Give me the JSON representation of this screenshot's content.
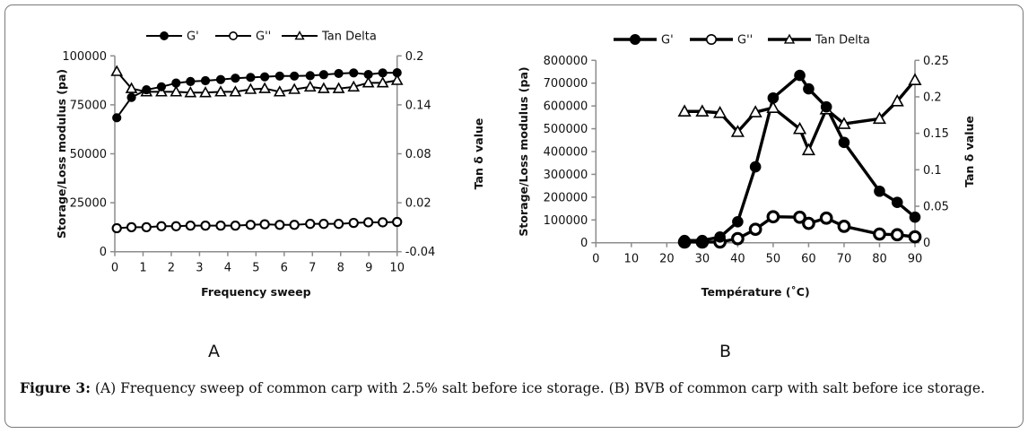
{
  "figure": {
    "caption_label": "Figure 3:",
    "caption_text": " (A) Frequency sweep of common carp with 2.5% salt before ice storage. (B) BVB of common carp with salt before ice storage.",
    "panel_a_label": "A",
    "panel_b_label": "B"
  },
  "chart_data": [
    {
      "id": "A",
      "type": "line",
      "title": "",
      "xlabel": "Frequency sweep",
      "ylabel": "Storage/Loss modulus (pa)",
      "y2label": "Tan δ value",
      "xlim": [
        0,
        10
      ],
      "ylim": [
        0,
        100000
      ],
      "y2lim": [
        -0.04,
        0.2
      ],
      "xticks": [
        "0",
        "1",
        "2",
        "3",
        "4",
        "5",
        "6",
        "7",
        "8",
        "9",
        "10"
      ],
      "yticks": [
        "0",
        "25000",
        "50000",
        "75000",
        "100000"
      ],
      "y2ticks": [
        "-0.04",
        "0.02",
        "0.08",
        "0.14",
        "0.2"
      ],
      "grid": false,
      "legend": "top",
      "legend_entries": [
        "G'",
        "G''",
        "Tan Delta"
      ],
      "x": [
        0.07,
        0.59,
        1.12,
        1.65,
        2.17,
        2.68,
        3.21,
        3.75,
        4.27,
        4.81,
        5.31,
        5.84,
        6.36,
        6.92,
        7.4,
        7.93,
        8.46,
        8.98,
        9.49,
        10.0
      ],
      "series": [
        {
          "name": "G'",
          "axis": "left",
          "marker": "filled-circle",
          "values": [
            68400,
            78800,
            82700,
            84200,
            86100,
            86900,
            87300,
            87900,
            88600,
            89000,
            89300,
            89700,
            89700,
            89900,
            90400,
            91000,
            91300,
            90500,
            91300,
            91400
          ]
        },
        {
          "name": "G''",
          "axis": "left",
          "marker": "open-circle",
          "values": [
            12000,
            12500,
            12500,
            13000,
            13000,
            13300,
            13300,
            13300,
            13300,
            13700,
            14000,
            13700,
            13700,
            14200,
            14200,
            14200,
            14700,
            15000,
            15000,
            15200
          ]
        },
        {
          "name": "Tan Delta",
          "axis": "right",
          "marker": "open-triangle",
          "values": [
            0.181,
            0.16,
            0.156,
            0.156,
            0.156,
            0.155,
            0.155,
            0.156,
            0.156,
            0.159,
            0.16,
            0.156,
            0.159,
            0.162,
            0.16,
            0.16,
            0.162,
            0.167,
            0.167,
            0.17
          ]
        }
      ]
    },
    {
      "id": "B",
      "type": "line",
      "title": "",
      "xlabel": "Température (˚C)",
      "ylabel": "Storage/Loss modulus (pa)",
      "y2label": "Tan δ value",
      "xlim": [
        0,
        90
      ],
      "ylim": [
        0,
        800000
      ],
      "y2lim": [
        0,
        0.25
      ],
      "xticks": [
        "0",
        "10",
        "20",
        "30",
        "40",
        "50",
        "60",
        "70",
        "80",
        "90"
      ],
      "yticks": [
        "0",
        "100000",
        "200000",
        "300000",
        "400000",
        "500000",
        "600000",
        "700000",
        "800000"
      ],
      "y2ticks": [
        "0",
        "0.05",
        "0.1",
        "0.15",
        "0.2",
        "0.25"
      ],
      "grid": false,
      "legend": "top",
      "legend_entries": [
        "G'",
        "G''",
        "Tan Delta"
      ],
      "x": [
        25,
        30,
        35,
        40,
        45,
        50,
        57.5,
        60,
        65,
        70,
        80,
        85,
        90
      ],
      "series": [
        {
          "name": "G'",
          "axis": "left",
          "marker": "filled-circle",
          "values": [
            10000,
            10000,
            25000,
            92000,
            333000,
            635000,
            734000,
            675000,
            596000,
            440000,
            226000,
            177000,
            112000
          ]
        },
        {
          "name": "G''",
          "axis": "left",
          "marker": "open-circle",
          "values": [
            3000,
            3000,
            3000,
            18000,
            59000,
            114000,
            112000,
            85000,
            108000,
            72000,
            38000,
            35000,
            26000
          ]
        },
        {
          "name": "Tan Delta",
          "axis": "right",
          "marker": "open-triangle",
          "values": [
            0.18,
            0.18,
            0.178,
            0.152,
            0.179,
            0.185,
            0.156,
            0.127,
            0.183,
            0.163,
            0.17,
            0.194,
            0.223
          ]
        }
      ]
    }
  ]
}
